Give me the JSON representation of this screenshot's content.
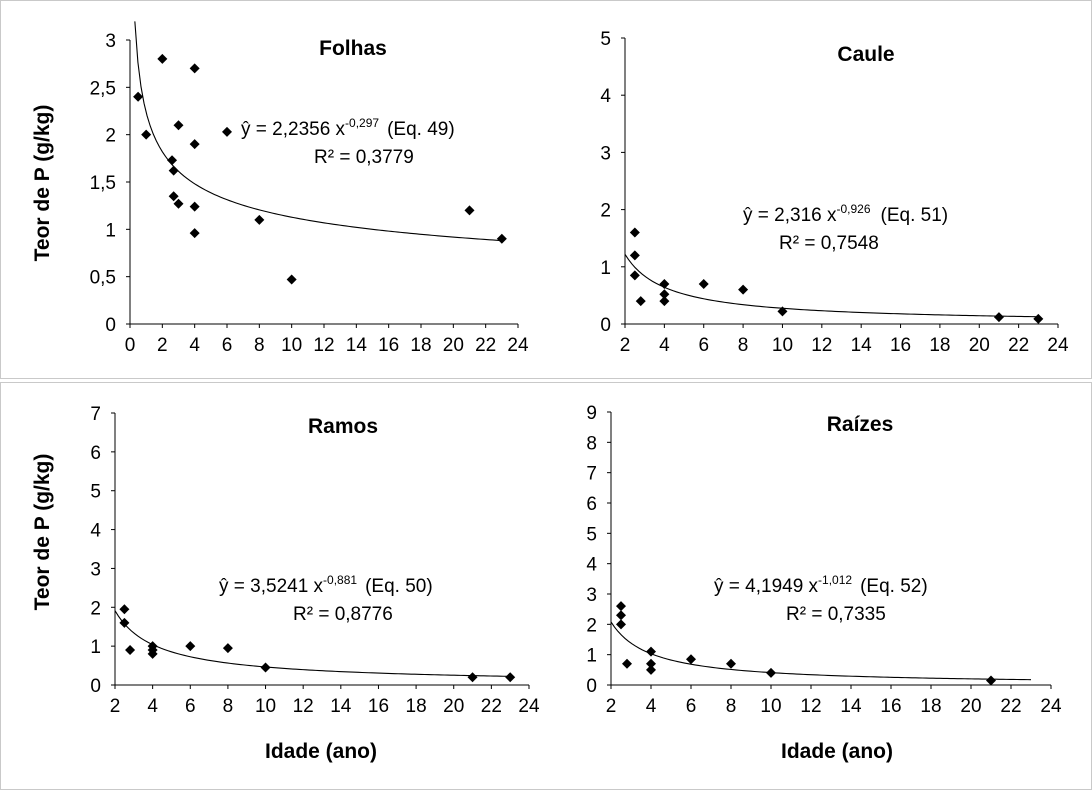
{
  "chart_data": [
    {
      "type": "scatter",
      "title": "Folhas",
      "xlabel": "",
      "ylabel": "Teor de P (g/kg)",
      "xlim": [
        0,
        24
      ],
      "ylim": [
        0,
        3
      ],
      "xticks": [
        "0",
        "2",
        "4",
        "6",
        "8",
        "10",
        "12",
        "14",
        "16",
        "18",
        "20",
        "22",
        "24"
      ],
      "yticks": [
        "0",
        "0,5",
        "1",
        "1,5",
        "2",
        "2,5",
        "3"
      ],
      "points": [
        {
          "x": 0.5,
          "y": 2.4
        },
        {
          "x": 1,
          "y": 2.0
        },
        {
          "x": 2,
          "y": 2.8
        },
        {
          "x": 2.6,
          "y": 1.73
        },
        {
          "x": 2.7,
          "y": 1.62
        },
        {
          "x": 2.7,
          "y": 1.35
        },
        {
          "x": 3,
          "y": 2.1
        },
        {
          "x": 3,
          "y": 1.27
        },
        {
          "x": 4,
          "y": 2.7
        },
        {
          "x": 4,
          "y": 1.9
        },
        {
          "x": 4,
          "y": 1.24
        },
        {
          "x": 4,
          "y": 0.96
        },
        {
          "x": 6,
          "y": 2.03
        },
        {
          "x": 8,
          "y": 1.1
        },
        {
          "x": 10,
          "y": 0.47
        },
        {
          "x": 21,
          "y": 1.2
        },
        {
          "x": 23,
          "y": 0.9
        }
      ],
      "fit": {
        "a": 2.2356,
        "b": -0.297,
        "x_start": 0.3,
        "x_end": 23
      },
      "equation": {
        "lhs": "ŷ = 2,2356 x",
        "exp": "-0,297",
        "eq": "(Eq. 49)",
        "r2": "R² = 0,3779"
      }
    },
    {
      "type": "scatter",
      "title": "Caule",
      "xlabel": "",
      "ylabel": "",
      "xlim": [
        2,
        24
      ],
      "ylim": [
        0,
        5
      ],
      "xticks": [
        "2",
        "4",
        "6",
        "8",
        "10",
        "12",
        "14",
        "16",
        "18",
        "20",
        "22",
        "24"
      ],
      "yticks": [
        "0",
        "1",
        "2",
        "3",
        "4",
        "5"
      ],
      "points": [
        {
          "x": 2.5,
          "y": 1.6
        },
        {
          "x": 2.5,
          "y": 1.2
        },
        {
          "x": 2.5,
          "y": 0.85
        },
        {
          "x": 2.8,
          "y": 0.4
        },
        {
          "x": 4,
          "y": 0.7
        },
        {
          "x": 4,
          "y": 0.52
        },
        {
          "x": 4,
          "y": 0.4
        },
        {
          "x": 6,
          "y": 0.7
        },
        {
          "x": 8,
          "y": 0.6
        },
        {
          "x": 10,
          "y": 0.22
        },
        {
          "x": 21,
          "y": 0.12
        },
        {
          "x": 23,
          "y": 0.09
        }
      ],
      "fit": {
        "a": 2.316,
        "b": -0.926,
        "x_start": 2,
        "x_end": 23
      },
      "equation": {
        "lhs": "ŷ = 2,316 x",
        "exp": "-0,926",
        "eq": "(Eq. 51)",
        "r2": "R² = 0,7548"
      }
    },
    {
      "type": "scatter",
      "title": "Ramos",
      "xlabel": "Idade (ano)",
      "ylabel": "Teor de P (g/kg)",
      "xlim": [
        2,
        24
      ],
      "ylim": [
        0,
        7
      ],
      "xticks": [
        "2",
        "4",
        "6",
        "8",
        "10",
        "12",
        "14",
        "16",
        "18",
        "20",
        "22",
        "24"
      ],
      "yticks": [
        "0",
        "1",
        "2",
        "3",
        "4",
        "5",
        "6",
        "7"
      ],
      "points": [
        {
          "x": 2.5,
          "y": 1.95
        },
        {
          "x": 2.5,
          "y": 1.6
        },
        {
          "x": 2.8,
          "y": 0.9
        },
        {
          "x": 4,
          "y": 1.0
        },
        {
          "x": 4,
          "y": 0.9
        },
        {
          "x": 4,
          "y": 0.8
        },
        {
          "x": 6,
          "y": 1.0
        },
        {
          "x": 8,
          "y": 0.95
        },
        {
          "x": 10,
          "y": 0.45
        },
        {
          "x": 21,
          "y": 0.2
        },
        {
          "x": 23,
          "y": 0.2
        }
      ],
      "fit": {
        "a": 3.5241,
        "b": -0.881,
        "x_start": 2,
        "x_end": 23
      },
      "equation": {
        "lhs": "ŷ = 3,5241 x",
        "exp": "-0,881",
        "eq": "(Eq. 50)",
        "r2": "R² = 0,8776"
      }
    },
    {
      "type": "scatter",
      "title": "Raízes",
      "xlabel": "Idade (ano)",
      "ylabel": "",
      "xlim": [
        2,
        24
      ],
      "ylim": [
        0,
        9
      ],
      "xticks": [
        "2",
        "4",
        "6",
        "8",
        "10",
        "12",
        "14",
        "16",
        "18",
        "20",
        "22",
        "24"
      ],
      "yticks": [
        "0",
        "1",
        "2",
        "3",
        "4",
        "5",
        "6",
        "7",
        "8",
        "9"
      ],
      "points": [
        {
          "x": 2.5,
          "y": 2.6
        },
        {
          "x": 2.5,
          "y": 2.3
        },
        {
          "x": 2.5,
          "y": 2.0
        },
        {
          "x": 2.8,
          "y": 0.7
        },
        {
          "x": 4,
          "y": 1.1
        },
        {
          "x": 4,
          "y": 0.7
        },
        {
          "x": 4,
          "y": 0.5
        },
        {
          "x": 6,
          "y": 0.85
        },
        {
          "x": 8,
          "y": 0.7
        },
        {
          "x": 10,
          "y": 0.4
        },
        {
          "x": 21,
          "y": 0.15
        }
      ],
      "fit": {
        "a": 4.1949,
        "b": -1.012,
        "x_start": 2,
        "x_end": 23
      },
      "equation": {
        "lhs": "ŷ = 4,1949 x",
        "exp": "-1,012",
        "eq": "(Eq. 52)",
        "r2": "R² = 0,7335"
      }
    }
  ]
}
